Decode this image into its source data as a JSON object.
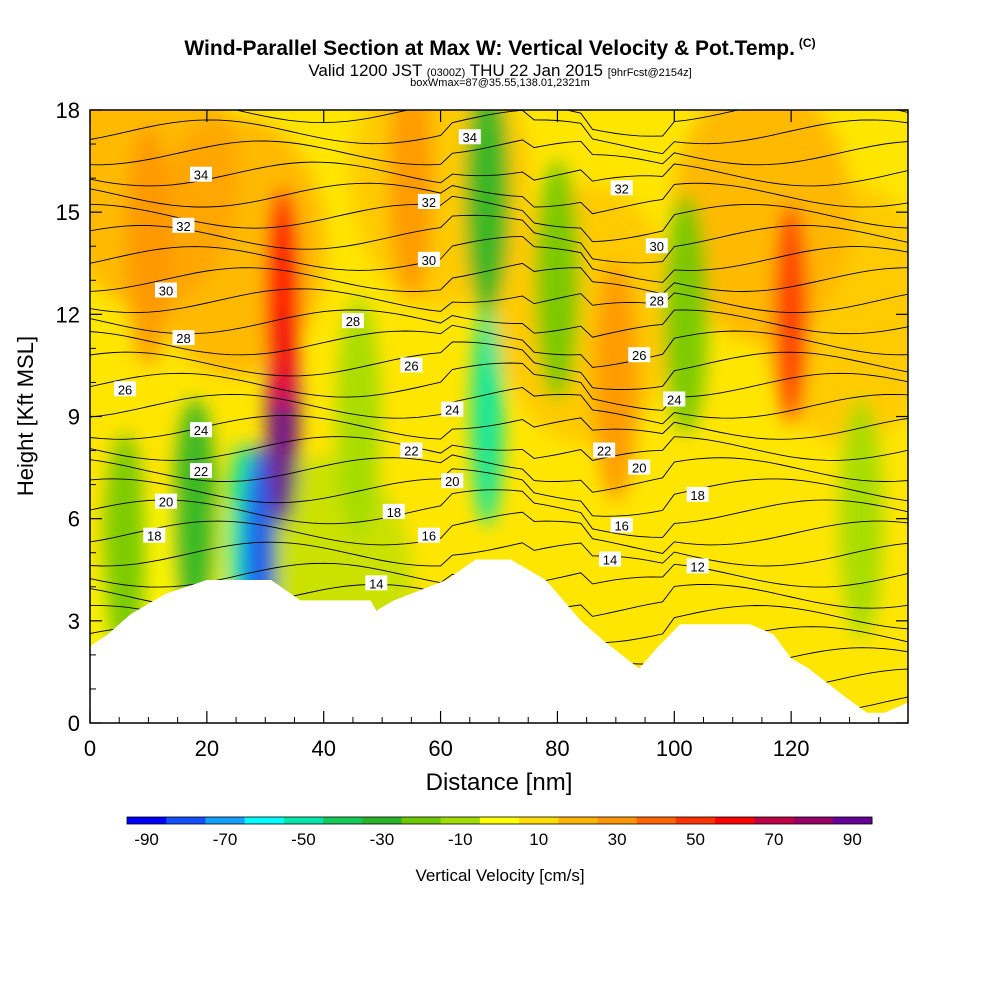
{
  "header": {
    "title": "Wind-Parallel Section at Max W: Vertical Velocity & Pot.Temp.",
    "copyright": "(C)",
    "valid_prefix": "Valid 1200 JST",
    "valid_utc": "(0300Z)",
    "valid_date": "THU 22 Jan 2015",
    "forecast": "[9hrFcst@2154z]",
    "box_info": "boxWmax=87@35.55,138.01,2321m"
  },
  "chart_data": {
    "type": "heatmap",
    "xlabel": "Distance [nm]",
    "ylabel": "Height [Kft MSL]",
    "xlim": [
      0,
      140
    ],
    "ylim": [
      0,
      18
    ],
    "x_ticks": [
      0,
      20,
      40,
      60,
      80,
      100,
      120
    ],
    "y_ticks": [
      0,
      3,
      6,
      9,
      12,
      15,
      18
    ],
    "colorbar": {
      "label": "Vertical Velocity [cm/s]",
      "tick_labels": [
        "-90",
        "-70",
        "-50",
        "-30",
        "-10",
        "10",
        "30",
        "50",
        "70",
        "90"
      ],
      "colors": [
        "#0000ff",
        "#1450ff",
        "#14a0ff",
        "#00ffff",
        "#00e6aa",
        "#14c85a",
        "#28b428",
        "#6ec800",
        "#a0dc00",
        "#ffff00",
        "#ffdc00",
        "#ffb400",
        "#ff9600",
        "#ff6400",
        "#ff3200",
        "#ff0000",
        "#be0046",
        "#960064",
        "#640096"
      ]
    },
    "vertical_velocity_cells": [
      {
        "x": 6,
        "y": 5.0,
        "w": -25
      },
      {
        "x": 18,
        "y": 6.0,
        "w": -30
      },
      {
        "x": 26,
        "y": 5.0,
        "w": -55
      },
      {
        "x": 29,
        "y": 5.0,
        "w": -80
      },
      {
        "x": 33,
        "y": 9.0,
        "w": 87
      },
      {
        "x": 33,
        "y": 12.5,
        "w": 60
      },
      {
        "x": 46,
        "y": 9.0,
        "w": -15
      },
      {
        "x": 68,
        "y": 9.0,
        "w": -50
      },
      {
        "x": 68,
        "y": 15.5,
        "w": -30
      },
      {
        "x": 80,
        "y": 13.0,
        "w": -25
      },
      {
        "x": 90,
        "y": 10.0,
        "w": 30
      },
      {
        "x": 102,
        "y": 12.0,
        "w": -20
      },
      {
        "x": 120,
        "y": 12.0,
        "w": 50
      },
      {
        "x": 132,
        "y": 6.0,
        "w": -15
      },
      {
        "x": 10,
        "y": 14.0,
        "w": 28
      },
      {
        "x": 55,
        "y": 16.0,
        "w": 25
      }
    ],
    "theta_contours": [
      {
        "label": "12",
        "level": 12,
        "lx": 104,
        "ly": 4.6
      },
      {
        "label": "14",
        "level": 14,
        "lx": 49,
        "ly": 4.1
      },
      {
        "label": "14",
        "level": 14,
        "lx": 89,
        "ly": 4.8
      },
      {
        "label": "16",
        "level": 16,
        "lx": 58,
        "ly": 5.5
      },
      {
        "label": "16",
        "level": 16,
        "lx": 91,
        "ly": 5.8
      },
      {
        "label": "18",
        "level": 18,
        "lx": 11,
        "ly": 5.5
      },
      {
        "label": "18",
        "level": 18,
        "lx": 52,
        "ly": 6.2
      },
      {
        "label": "18",
        "level": 18,
        "lx": 104,
        "ly": 6.7
      },
      {
        "label": "20",
        "level": 20,
        "lx": 13,
        "ly": 6.5
      },
      {
        "label": "20",
        "level": 20,
        "lx": 62,
        "ly": 7.1
      },
      {
        "label": "20",
        "level": 20,
        "lx": 94,
        "ly": 7.5
      },
      {
        "label": "22",
        "level": 22,
        "lx": 19,
        "ly": 7.4
      },
      {
        "label": "22",
        "level": 22,
        "lx": 55,
        "ly": 8.0
      },
      {
        "label": "22",
        "level": 22,
        "lx": 88,
        "ly": 8.0
      },
      {
        "label": "24",
        "level": 24,
        "lx": 19,
        "ly": 8.6
      },
      {
        "label": "24",
        "level": 24,
        "lx": 62,
        "ly": 9.2
      },
      {
        "label": "24",
        "level": 24,
        "lx": 100,
        "ly": 9.5
      },
      {
        "label": "26",
        "level": 26,
        "lx": 6,
        "ly": 9.8
      },
      {
        "label": "26",
        "level": 26,
        "lx": 55,
        "ly": 10.5
      },
      {
        "label": "26",
        "level": 26,
        "lx": 94,
        "ly": 10.8
      },
      {
        "label": "28",
        "level": 28,
        "lx": 16,
        "ly": 11.3
      },
      {
        "label": "28",
        "level": 28,
        "lx": 45,
        "ly": 11.8
      },
      {
        "label": "28",
        "level": 28,
        "lx": 97,
        "ly": 12.4
      },
      {
        "label": "30",
        "level": 30,
        "lx": 13,
        "ly": 12.7
      },
      {
        "label": "30",
        "level": 30,
        "lx": 58,
        "ly": 13.6
      },
      {
        "label": "30",
        "level": 30,
        "lx": 97,
        "ly": 14.0
      },
      {
        "label": "32",
        "level": 32,
        "lx": 16,
        "ly": 14.6
      },
      {
        "label": "32",
        "level": 32,
        "lx": 58,
        "ly": 15.3
      },
      {
        "label": "32",
        "level": 32,
        "lx": 91,
        "ly": 15.7
      },
      {
        "label": "34",
        "level": 34,
        "lx": 19,
        "ly": 16.1
      },
      {
        "label": "34",
        "level": 34,
        "lx": 65,
        "ly": 17.2
      }
    ],
    "terrain": [
      {
        "x": 0,
        "h": 2.25
      },
      {
        "x": 3,
        "h": 2.6
      },
      {
        "x": 7,
        "h": 3.2
      },
      {
        "x": 10,
        "h": 3.5
      },
      {
        "x": 13,
        "h": 3.8
      },
      {
        "x": 20,
        "h": 4.2
      },
      {
        "x": 31,
        "h": 4.2
      },
      {
        "x": 36,
        "h": 3.6
      },
      {
        "x": 48,
        "h": 3.6
      },
      {
        "x": 49,
        "h": 3.3
      },
      {
        "x": 52,
        "h": 3.6
      },
      {
        "x": 61,
        "h": 4.2
      },
      {
        "x": 66,
        "h": 4.8
      },
      {
        "x": 72,
        "h": 4.8
      },
      {
        "x": 78,
        "h": 4.2
      },
      {
        "x": 81,
        "h": 3.6
      },
      {
        "x": 84,
        "h": 3.0
      },
      {
        "x": 88,
        "h": 2.4
      },
      {
        "x": 94,
        "h": 1.6
      },
      {
        "x": 97,
        "h": 2.2
      },
      {
        "x": 101,
        "h": 2.9
      },
      {
        "x": 113,
        "h": 2.9
      },
      {
        "x": 117,
        "h": 2.6
      },
      {
        "x": 120,
        "h": 1.9
      },
      {
        "x": 123,
        "h": 1.6
      },
      {
        "x": 126,
        "h": 1.2
      },
      {
        "x": 129,
        "h": 0.8
      },
      {
        "x": 133,
        "h": 0.3
      },
      {
        "x": 136,
        "h": 0.3
      },
      {
        "x": 140,
        "h": 0.6
      }
    ]
  }
}
